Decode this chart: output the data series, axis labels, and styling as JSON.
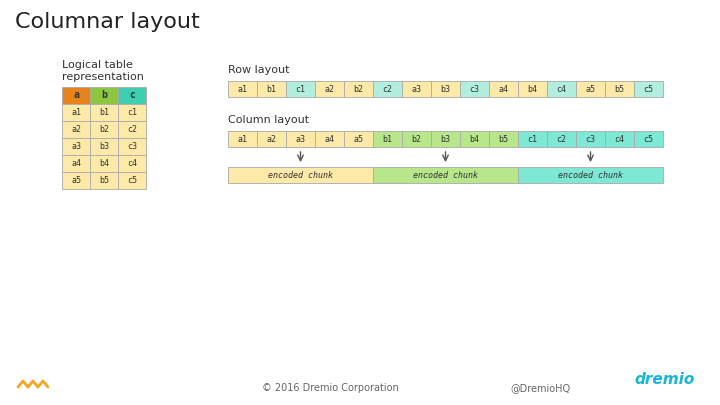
{
  "title": "Columnar layout",
  "title_fontsize": 16,
  "logical_label": "Logical table\nrepresentation",
  "table_header": [
    "a",
    "b",
    "c"
  ],
  "table_header_colors": [
    "#e8821a",
    "#8dc63f",
    "#3ecfb2"
  ],
  "table_rows": [
    [
      "a1",
      "b1",
      "c1"
    ],
    [
      "a2",
      "b2",
      "c2"
    ],
    [
      "a3",
      "b3",
      "c3"
    ],
    [
      "a4",
      "b4",
      "c4"
    ],
    [
      "a5",
      "b5",
      "c5"
    ]
  ],
  "table_cell_color": "#fde9a8",
  "row_layout_label": "Row layout",
  "row_layout_cells": [
    "a1",
    "b1",
    "c1",
    "a2",
    "b2",
    "c2",
    "a3",
    "b3",
    "c3",
    "a4",
    "b4",
    "c4",
    "a5",
    "b5",
    "c5"
  ],
  "row_layout_colors": [
    "#fde9a8",
    "#fde9a8",
    "#b2eedd",
    "#fde9a8",
    "#fde9a8",
    "#b2eedd",
    "#fde9a8",
    "#fde9a8",
    "#b2eedd",
    "#fde9a8",
    "#fde9a8",
    "#b2eedd",
    "#fde9a8",
    "#fde9a8",
    "#b2eedd"
  ],
  "col_layout_label": "Column layout",
  "col_layout_cells": [
    "a1",
    "a2",
    "a3",
    "a4",
    "a5",
    "b1",
    "b2",
    "b3",
    "b4",
    "b5",
    "c1",
    "c2",
    "c3",
    "c4",
    "c5"
  ],
  "col_layout_colors": [
    "#fde9a8",
    "#fde9a8",
    "#fde9a8",
    "#fde9a8",
    "#fde9a8",
    "#b8e68a",
    "#b8e68a",
    "#b8e68a",
    "#b8e68a",
    "#b8e68a",
    "#7de8d4",
    "#7de8d4",
    "#7de8d4",
    "#7de8d4",
    "#7de8d4"
  ],
  "encoded_chunk_colors": [
    "#fde9a8",
    "#b8e68a",
    "#7de8d4"
  ],
  "encoded_chunk_label": "encoded chunk",
  "footer_left": "© 2016 Dremio Corporation",
  "footer_right": "@DremioHQ",
  "bg_color": "#ffffff",
  "border_color": "#aaaaaa",
  "cell_fontsize": 6,
  "label_fontsize": 8
}
